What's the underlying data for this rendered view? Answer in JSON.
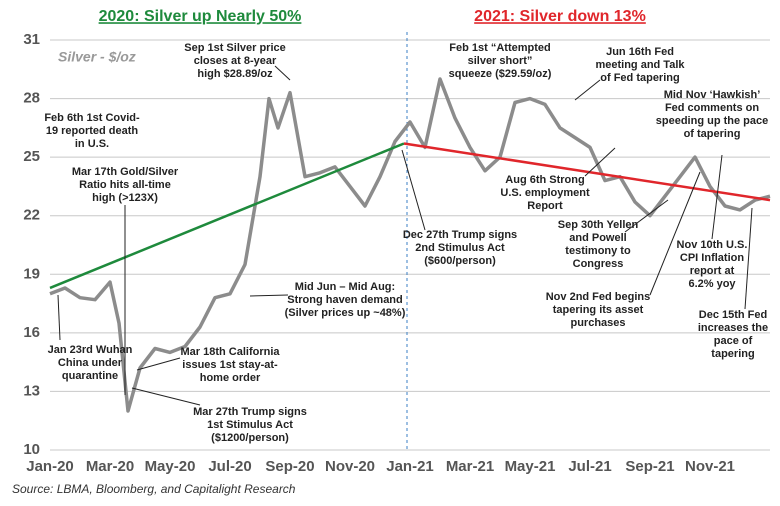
{
  "chart_data": {
    "type": "line",
    "headers": [
      {
        "text": "2020:  Silver up Nearly 50%",
        "color": "#1e8a3c"
      },
      {
        "text": "2021:  Silver down 13%",
        "color": "#e0262b"
      }
    ],
    "source": "Source: LBMA, Bloomberg, and Capitalight Research",
    "xlim": [
      0,
      24
    ],
    "xticks": [
      {
        "value": 0,
        "label": "Jan-20"
      },
      {
        "value": 2,
        "label": "Mar-20"
      },
      {
        "value": 4,
        "label": "May-20"
      },
      {
        "value": 6,
        "label": "Jul-20"
      },
      {
        "value": 8,
        "label": "Sep-20"
      },
      {
        "value": 10,
        "label": "Nov-20"
      },
      {
        "value": 12,
        "label": "Jan-21"
      },
      {
        "value": 14,
        "label": "Mar-21"
      },
      {
        "value": 16,
        "label": "May-21"
      },
      {
        "value": 18,
        "label": "Jul-21"
      },
      {
        "value": 20,
        "label": "Sep-21"
      },
      {
        "value": 22,
        "label": "Nov-21"
      }
    ],
    "ylim": [
      10,
      31
    ],
    "yticks": [
      10,
      13,
      16,
      19,
      22,
      25,
      28,
      31
    ],
    "grid": true,
    "x": [
      0,
      0.5,
      1,
      1.5,
      2,
      2.3,
      2.6,
      3,
      3.5,
      4,
      4.5,
      5,
      5.5,
      6,
      6.5,
      7,
      7.3,
      7.6,
      8,
      8.5,
      9,
      9.5,
      10,
      10.5,
      11,
      11.5,
      12,
      12.5,
      13,
      13.5,
      14,
      14.5,
      15,
      15.5,
      16,
      16.5,
      17,
      17.5,
      18,
      18.5,
      19,
      19.5,
      20,
      20.5,
      21,
      21.5,
      22,
      22.5,
      23,
      23.5,
      24
    ],
    "series": [
      {
        "name": "Silver - $/oz",
        "color": "#8c8c8c",
        "values": [
          18.0,
          18.3,
          17.8,
          17.7,
          18.6,
          16.5,
          12.0,
          14.2,
          15.2,
          15.0,
          15.3,
          16.3,
          17.8,
          18.0,
          19.5,
          24.0,
          28.0,
          26.5,
          28.3,
          24.0,
          24.2,
          24.5,
          23.5,
          22.5,
          24.0,
          25.8,
          26.8,
          25.5,
          29.0,
          27.0,
          25.5,
          24.3,
          25.0,
          27.8,
          28.0,
          27.7,
          26.5,
          26.0,
          25.5,
          23.8,
          24.0,
          22.7,
          22.0,
          23.0,
          24.0,
          25.0,
          23.5,
          22.5,
          22.3,
          22.8,
          23.0
        ]
      }
    ],
    "trends": [
      {
        "color": "#1e8a3c",
        "x": [
          0,
          11.8
        ],
        "values": [
          18.3,
          25.7
        ]
      },
      {
        "color": "#e0262b",
        "x": [
          11.8,
          24
        ],
        "values": [
          25.7,
          22.8
        ]
      }
    ],
    "divider_x": 11.9,
    "annotations": [
      [
        "Feb 6th 1st Covid-",
        "19 reported death",
        "in U.S."
      ],
      [
        "Mar 17th Gold/Silver",
        "Ratio hits all-time",
        "high (>123X)"
      ],
      [
        "Jan 23rd Wuhan",
        "China under",
        "quarantine"
      ],
      [
        "Mar 18th California",
        "issues 1st stay-at-",
        "home order"
      ],
      [
        "Mar 27th Trump signs",
        "1st Stimulus Act",
        "($1200/person)"
      ],
      [
        "Sep 1st Silver price",
        "closes at 8-year",
        "high $28.89/oz"
      ],
      [
        "Mid Jun – Mid Aug:",
        "Strong haven demand",
        "(Silver prices up ~48%)"
      ],
      [
        "Dec 27th Trump signs",
        "2nd Stimulus Act",
        "($600/person)"
      ],
      [
        "Feb 1st “Attempted",
        "silver short”",
        "squeeze ($29.59/oz)"
      ],
      [
        "Jun 16th Fed",
        "meeting and Talk",
        "of Fed tapering"
      ],
      [
        "Mid Nov ‘Hawkish’",
        "Fed comments on",
        "speeding up the pace",
        "of tapering"
      ],
      [
        "Aug 6th Strong",
        "U.S. employment",
        "Report"
      ],
      [
        "Sep 30th Yellen",
        "and Powell",
        "testimony to",
        "Congress"
      ],
      [
        "Nov 10th U.S.",
        "CPI Inflation",
        "report at",
        "6.2% yoy"
      ],
      [
        "Nov 2nd  Fed begins",
        "tapering its asset",
        "purchases"
      ],
      [
        "Dec 15th Fed",
        "increases the",
        "pace of",
        "tapering"
      ]
    ]
  }
}
